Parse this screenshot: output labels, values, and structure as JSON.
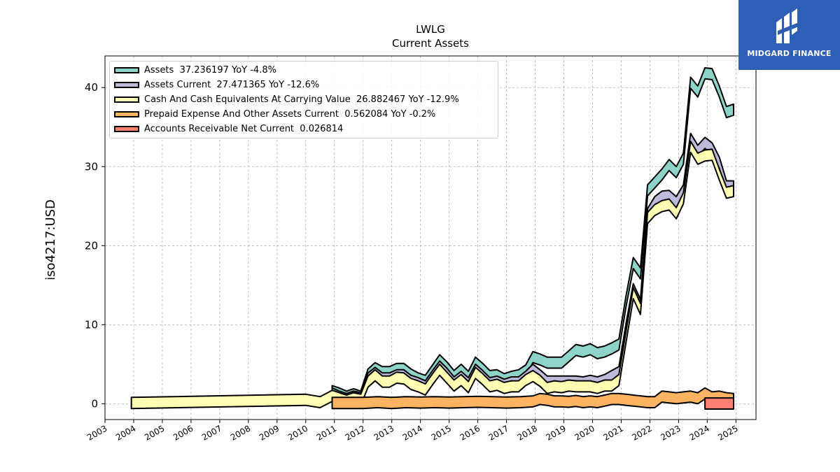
{
  "brand": {
    "name": "MIDGARD FINANCE",
    "bg_color": "#2f5fb5",
    "icon": "midgard-logo-icon"
  },
  "chart_data": {
    "type": "area",
    "title": "LWLG",
    "subtitle": "Current  Assets",
    "ylabel": "iso4217:USD",
    "xlabel": "",
    "xlim": [
      2003.0,
      2025.7
    ],
    "ylim": [
      -2.0,
      44.0
    ],
    "x_ticks": [
      "2003",
      "2004",
      "2005",
      "2006",
      "2007",
      "2008",
      "2009",
      "2010",
      "2011",
      "2012",
      "2013",
      "2014",
      "2015",
      "2016",
      "2017",
      "2018",
      "2019",
      "2020",
      "2021",
      "2022",
      "2023",
      "2024",
      "2025"
    ],
    "y_ticks": [
      0,
      10,
      20,
      30,
      40
    ],
    "grid": true,
    "legend_position": "top-left",
    "series": [
      {
        "name": "Assets",
        "legend_label": "Assets  37.236197 YoY -4.8%",
        "color": "#8dd3c7",
        "x": [
          2010.92,
          2011.17,
          2011.42,
          2011.67,
          2011.92,
          2012.17,
          2012.42,
          2012.67,
          2012.92,
          2013.17,
          2013.42,
          2013.67,
          2013.92,
          2014.17,
          2014.42,
          2014.67,
          2014.92,
          2015.17,
          2015.42,
          2015.67,
          2015.92,
          2016.17,
          2016.42,
          2016.67,
          2016.92,
          2017.17,
          2017.42,
          2017.67,
          2017.92,
          2018.17,
          2018.42,
          2018.67,
          2018.92,
          2019.17,
          2019.42,
          2019.67,
          2019.92,
          2020.17,
          2020.42,
          2020.67,
          2020.92,
          2021.17,
          2021.42,
          2021.67,
          2021.92,
          2022.17,
          2022.42,
          2022.67,
          2022.92,
          2023.17,
          2023.42,
          2023.67,
          2023.92,
          2024.17,
          2024.42,
          2024.67,
          2024.92
        ],
        "values": [
          1.6,
          1.3,
          0.9,
          1.2,
          0.9,
          3.7,
          4.5,
          4.0,
          4.0,
          4.4,
          4.4,
          3.7,
          3.2,
          2.9,
          4.2,
          5.5,
          4.6,
          3.5,
          4.3,
          3.4,
          5.2,
          4.4,
          3.5,
          3.6,
          3.1,
          3.4,
          3.6,
          4.2,
          5.9,
          5.6,
          5.2,
          5.2,
          5.2,
          6.0,
          6.8,
          6.6,
          6.9,
          6.4,
          6.6,
          7.0,
          7.5,
          13.0,
          17.8,
          16.5,
          27.0,
          28.0,
          29.0,
          30.2,
          29.3,
          31.0,
          40.6,
          39.5,
          41.8,
          41.7,
          39.5,
          36.9,
          37.2
        ]
      },
      {
        "name": "Assets Current",
        "legend_label": "Assets Current  27.471365 YoY -12.6%",
        "color": "#bebada",
        "x": [
          2010.92,
          2011.17,
          2011.42,
          2011.67,
          2011.92,
          2012.17,
          2012.42,
          2012.67,
          2012.92,
          2013.17,
          2013.42,
          2013.67,
          2013.92,
          2014.17,
          2014.42,
          2014.67,
          2014.92,
          2015.17,
          2015.42,
          2015.67,
          2015.92,
          2016.17,
          2016.42,
          2016.67,
          2016.92,
          2017.17,
          2017.42,
          2017.67,
          2017.92,
          2018.17,
          2018.42,
          2018.67,
          2018.92,
          2019.17,
          2019.42,
          2019.67,
          2019.92,
          2020.17,
          2020.42,
          2020.67,
          2020.92,
          2021.17,
          2021.42,
          2021.67,
          2021.92,
          2022.17,
          2022.42,
          2022.67,
          2022.92,
          2023.17,
          2023.42,
          2023.67,
          2023.92,
          2024.17,
          2024.42,
          2024.67,
          2024.92
        ],
        "values": [
          1.3,
          0.9,
          0.6,
          0.9,
          0.7,
          3.2,
          3.9,
          3.2,
          3.2,
          3.6,
          3.6,
          2.9,
          2.6,
          2.2,
          3.5,
          4.7,
          3.8,
          2.7,
          3.4,
          2.6,
          4.3,
          3.5,
          2.6,
          2.8,
          2.4,
          2.7,
          2.7,
          3.4,
          4.3,
          3.6,
          2.8,
          2.8,
          2.8,
          2.8,
          2.8,
          2.7,
          2.9,
          2.7,
          3.0,
          3.5,
          4.0,
          9.5,
          14.5,
          12.5,
          24.0,
          25.5,
          26.2,
          26.3,
          25.5,
          27.0,
          33.5,
          32.0,
          33.0,
          32.3,
          30.5,
          27.5,
          27.5
        ]
      },
      {
        "name": "Cash And Cash Equivalents At Carrying Value",
        "legend_label": "Cash And Cash Equivalents At Carrying Value  26.882467 YoY -12.9%",
        "color": "#ffffb3",
        "x": [
          2003.92,
          2010.0,
          2010.5,
          2010.92,
          2011.17,
          2011.42,
          2011.67,
          2011.92,
          2012.17,
          2012.42,
          2012.67,
          2012.92,
          2013.17,
          2013.42,
          2013.67,
          2013.92,
          2014.17,
          2014.42,
          2014.67,
          2014.92,
          2015.17,
          2015.42,
          2015.67,
          2015.92,
          2016.17,
          2016.42,
          2016.67,
          2016.92,
          2017.17,
          2017.42,
          2017.67,
          2017.92,
          2018.17,
          2018.42,
          2018.67,
          2018.92,
          2019.17,
          2019.42,
          2019.67,
          2019.92,
          2020.17,
          2020.42,
          2020.67,
          2020.92,
          2021.17,
          2021.42,
          2021.67,
          2021.92,
          2022.17,
          2022.42,
          2022.67,
          2022.92,
          2023.17,
          2023.42,
          2023.67,
          2023.92,
          2024.17,
          2024.42,
          2024.67,
          2024.92
        ],
        "values": [
          0.1,
          0.5,
          0.2,
          1.0,
          0.7,
          0.4,
          0.7,
          0.5,
          2.8,
          3.6,
          2.8,
          2.8,
          3.3,
          3.2,
          2.5,
          2.2,
          1.8,
          3.1,
          4.3,
          3.3,
          2.3,
          3.0,
          2.1,
          3.9,
          3.1,
          2.2,
          2.4,
          2.0,
          2.2,
          2.2,
          3.0,
          3.5,
          2.9,
          2.0,
          2.2,
          2.1,
          2.3,
          2.2,
          2.2,
          2.2,
          2.0,
          2.3,
          2.3,
          3.0,
          8.5,
          14.0,
          12.0,
          23.5,
          24.5,
          25.0,
          25.2,
          24.1,
          26.0,
          32.5,
          31.0,
          31.4,
          31.5,
          29.0,
          26.7,
          26.9
        ]
      },
      {
        "name": "Prepaid Expense And Other Assets Current",
        "legend_label": "Prepaid Expense And Other Assets Current  0.562084 YoY -0.2%",
        "color": "#fdb462",
        "x": [
          2010.92,
          2011.5,
          2012.0,
          2012.5,
          2013.0,
          2013.5,
          2014.0,
          2014.5,
          2015.0,
          2015.5,
          2016.0,
          2016.5,
          2017.0,
          2017.5,
          2017.92,
          2018.17,
          2018.42,
          2018.67,
          2018.92,
          2019.17,
          2019.42,
          2019.67,
          2019.92,
          2020.17,
          2020.42,
          2020.67,
          2020.92,
          2021.17,
          2021.42,
          2021.67,
          2021.92,
          2022.17,
          2022.42,
          2022.67,
          2022.92,
          2023.17,
          2023.42,
          2023.67,
          2023.92,
          2024.17,
          2024.42,
          2024.67,
          2024.92
        ],
        "values": [
          0.1,
          0.1,
          0.1,
          0.2,
          0.1,
          0.2,
          0.15,
          0.2,
          0.15,
          0.2,
          0.25,
          0.2,
          0.15,
          0.2,
          0.3,
          0.6,
          0.5,
          0.3,
          0.3,
          0.25,
          0.35,
          0.2,
          0.3,
          0.2,
          0.4,
          0.6,
          0.6,
          0.5,
          0.4,
          0.3,
          0.2,
          0.2,
          0.9,
          0.8,
          0.7,
          0.8,
          0.9,
          0.7,
          1.3,
          0.8,
          0.9,
          0.7,
          0.6
        ]
      },
      {
        "name": "Accounts Receivable Net Current",
        "legend_label": "Accounts Receivable Net Current  0.026814",
        "color": "#fb8072",
        "x": [
          2023.92,
          2024.17,
          2024.42,
          2024.67,
          2024.92
        ],
        "values": [
          0.03,
          0.03,
          0.03,
          0.03,
          0.03
        ]
      }
    ]
  }
}
